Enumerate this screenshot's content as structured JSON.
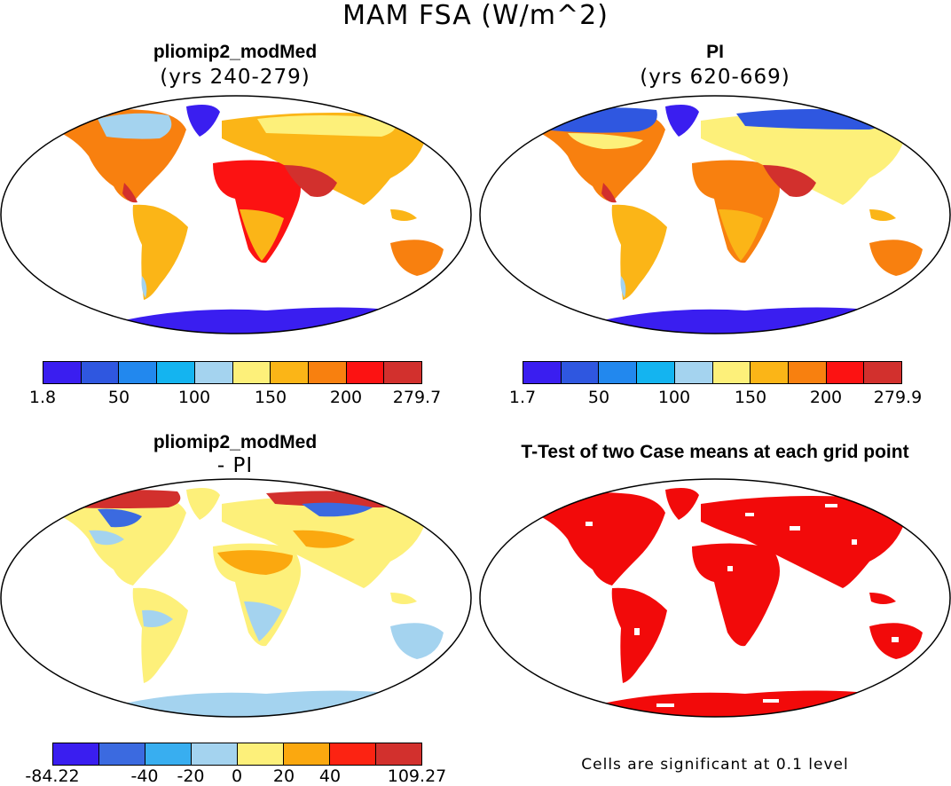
{
  "figure": {
    "title": "MAM FSA (W/m^2)"
  },
  "panels": [
    {
      "id": "pliomip2",
      "title": "pliomip2_modMed",
      "subtitle": "(yrs 240-279)",
      "colorbar": {
        "colors": [
          "#3a1ef0",
          "#2f57e0",
          "#2288ee",
          "#14b4f0",
          "#a4d3ef",
          "#fdf07a",
          "#fbb517",
          "#f8800f",
          "#fc1212",
          "#d2302d"
        ],
        "ticks": [
          "1.8",
          "50",
          "100",
          "150",
          "200",
          "279.7"
        ]
      }
    },
    {
      "id": "pi",
      "title": "PI",
      "subtitle": "(yrs 620-669)",
      "colorbar": {
        "colors": [
          "#3a1ef0",
          "#2f57e0",
          "#2288ee",
          "#14b4f0",
          "#a4d3ef",
          "#fdf07a",
          "#fbb517",
          "#f8800f",
          "#fc1212",
          "#d2302d"
        ],
        "ticks": [
          "1.7",
          "50",
          "100",
          "150",
          "200",
          "279.9"
        ]
      }
    },
    {
      "id": "diff",
      "title": "pliomip2_modMed",
      "subtitle": "- PI",
      "colorbar": {
        "colors": [
          "#3a1ef0",
          "#3b6ae0",
          "#38aef0",
          "#a4d3ef",
          "#fdf07a",
          "#fba80f",
          "#fc2312",
          "#d2302d"
        ],
        "ticks": [
          "-84.22",
          "-40",
          "-20",
          "0",
          "20",
          "40",
          "109.27"
        ]
      }
    },
    {
      "id": "ttest",
      "title": "T-Test of two Case means at each grid point",
      "note": "Cells are significant at 0.1 level"
    }
  ]
}
